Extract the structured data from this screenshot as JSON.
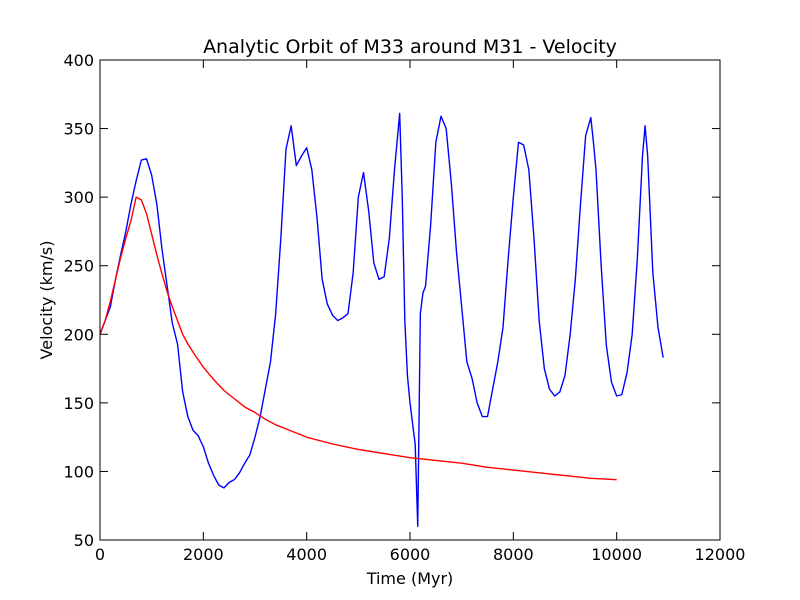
{
  "chart_data": {
    "type": "line",
    "title": "Analytic Orbit of M33 around M31 - Velocity",
    "xlabel": "Time (Myr)",
    "ylabel": "Velocity (km/s)",
    "xlim": [
      0,
      12000
    ],
    "ylim": [
      50,
      400
    ],
    "xticks": [
      0,
      2000,
      4000,
      6000,
      8000,
      10000,
      12000
    ],
    "yticks": [
      50,
      100,
      150,
      200,
      250,
      300,
      350,
      400
    ],
    "grid": false,
    "legend": "none",
    "series": [
      {
        "color": "#0000ff",
        "x": [
          0,
          100,
          200,
          300,
          400,
          500,
          600,
          700,
          800,
          900,
          1000,
          1100,
          1200,
          1300,
          1400,
          1500,
          1600,
          1700,
          1800,
          1900,
          2000,
          2100,
          2200,
          2300,
          2400,
          2500,
          2600,
          2700,
          2800,
          2900,
          3000,
          3100,
          3200,
          3300,
          3400,
          3500,
          3600,
          3700,
          3800,
          3900,
          4000,
          4100,
          4200,
          4300,
          4400,
          4500,
          4600,
          4700,
          4800,
          4900,
          5000,
          5100,
          5200,
          5300,
          5400,
          5500,
          5600,
          5700,
          5800,
          5850,
          5900,
          5950,
          6000,
          6100,
          6150,
          6200,
          6250,
          6300,
          6400,
          6500,
          6600,
          6700,
          6800,
          6900,
          7000,
          7100,
          7200,
          7300,
          7400,
          7500,
          7600,
          7700,
          7800,
          7900,
          8000,
          8100,
          8200,
          8300,
          8400,
          8500,
          8600,
          8700,
          8800,
          8900,
          9000,
          9100,
          9200,
          9300,
          9400,
          9500,
          9550,
          9600,
          9700,
          9800,
          9900,
          10000,
          10100,
          10200,
          10300,
          10400,
          10500,
          10550,
          10600,
          10700,
          10800,
          10900
        ],
        "y": [
          200,
          210,
          220,
          240,
          258,
          275,
          295,
          312,
          327,
          328,
          316,
          295,
          262,
          235,
          208,
          193,
          158,
          140,
          130,
          126,
          118,
          106,
          97,
          90,
          88,
          92,
          94,
          99,
          106,
          112,
          125,
          140,
          160,
          180,
          215,
          270,
          335,
          352,
          323,
          330,
          336,
          320,
          285,
          240,
          222,
          214,
          210,
          212,
          215,
          245,
          300,
          318,
          290,
          252,
          240,
          242,
          270,
          320,
          361,
          300,
          210,
          170,
          150,
          120,
          60,
          215,
          230,
          235,
          280,
          340,
          359,
          350,
          310,
          260,
          220,
          180,
          168,
          150,
          140,
          140,
          160,
          180,
          205,
          255,
          300,
          340,
          338,
          320,
          270,
          210,
          175,
          160,
          155,
          158,
          170,
          200,
          240,
          295,
          345,
          358,
          340,
          320,
          250,
          192,
          165,
          155,
          156,
          172,
          200,
          255,
          330,
          352,
          330,
          245,
          205,
          183
        ]
      },
      {
        "color": "#ff0000",
        "x": [
          0,
          100,
          200,
          300,
          400,
          500,
          600,
          700,
          800,
          900,
          1000,
          1100,
          1200,
          1300,
          1400,
          1500,
          1600,
          1700,
          1800,
          2000,
          2200,
          2400,
          2600,
          2800,
          3000,
          3200,
          3400,
          3600,
          3800,
          4000,
          4500,
          5000,
          5500,
          6000,
          6500,
          7000,
          7500,
          8000,
          8500,
          9000,
          9500,
          10000
        ],
        "y": [
          200,
          210,
          224,
          240,
          256,
          270,
          283,
          300,
          298,
          288,
          273,
          258,
          244,
          231,
          220,
          210,
          200,
          193,
          187,
          176,
          167,
          159,
          153,
          147,
          143,
          138,
          134,
          131,
          128,
          125,
          120,
          116,
          113,
          110,
          108,
          106,
          103,
          101,
          99,
          97,
          95,
          94
        ]
      }
    ]
  }
}
